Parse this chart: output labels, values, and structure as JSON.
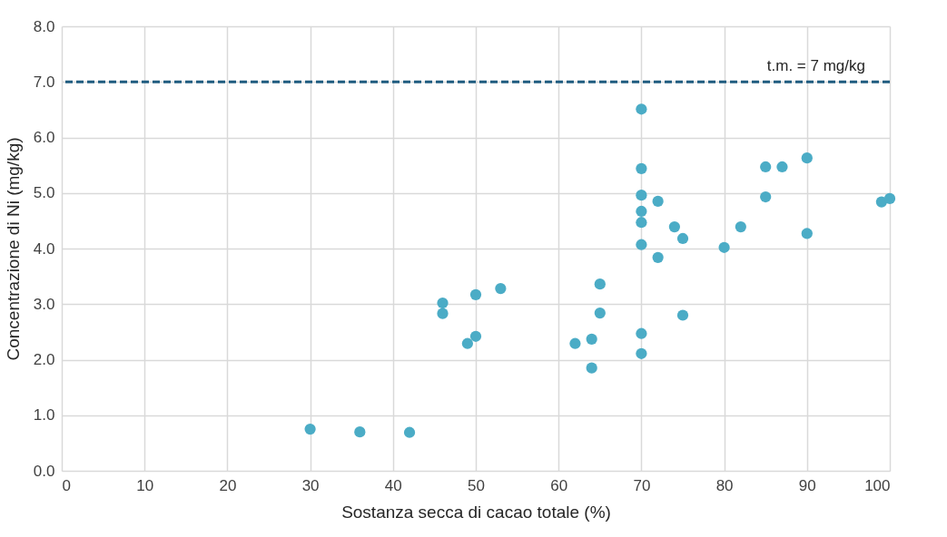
{
  "chart_data": {
    "type": "scatter",
    "xlabel": "Sostanza secca di cacao totale (%)",
    "ylabel": "Concentrazione di Ni (mg/kg)",
    "x": [
      30,
      36,
      42,
      46,
      46,
      49,
      50,
      50,
      53,
      62,
      64,
      64,
      65,
      65,
      70,
      70,
      70,
      70,
      70,
      70,
      70,
      70,
      72,
      72,
      74,
      75,
      75,
      80,
      82,
      85,
      85,
      87,
      90,
      90,
      99,
      100
    ],
    "series": [
      {
        "color": "#4bacc6",
        "values": [
          0.75,
          0.7,
          0.69,
          3.02,
          2.83,
          2.29,
          2.42,
          3.17,
          3.28,
          2.29,
          2.37,
          1.85,
          3.36,
          2.84,
          6.51,
          5.44,
          4.96,
          4.67,
          4.47,
          4.07,
          2.47,
          2.11,
          4.85,
          3.84,
          4.39,
          4.18,
          2.8,
          4.02,
          4.39,
          5.47,
          4.93,
          5.47,
          5.63,
          4.27,
          4.84,
          4.9
        ]
      }
    ],
    "xlim": [
      0,
      100
    ],
    "xticks": [
      0,
      10,
      20,
      30,
      40,
      50,
      60,
      70,
      80,
      90,
      100
    ],
    "ylim": [
      0,
      8
    ],
    "yticks": [
      {
        "value": 0,
        "label": "0.0"
      },
      {
        "value": 1,
        "label": "1.0"
      },
      {
        "value": 2,
        "label": "2.0"
      },
      {
        "value": 3,
        "label": "3.0"
      },
      {
        "value": 4,
        "label": "4.0"
      },
      {
        "value": 5,
        "label": "5.0"
      },
      {
        "value": 6,
        "label": "6.0"
      },
      {
        "value": 7,
        "label": "7.0"
      },
      {
        "value": 8,
        "label": "8.0"
      }
    ],
    "ref_lines": [
      {
        "axis": "y",
        "value": 7,
        "label": "t.m. = 7 mg/kg",
        "color": "#1f5c80",
        "line_style": "dashed"
      }
    ],
    "grid": true,
    "marker": "circle"
  }
}
